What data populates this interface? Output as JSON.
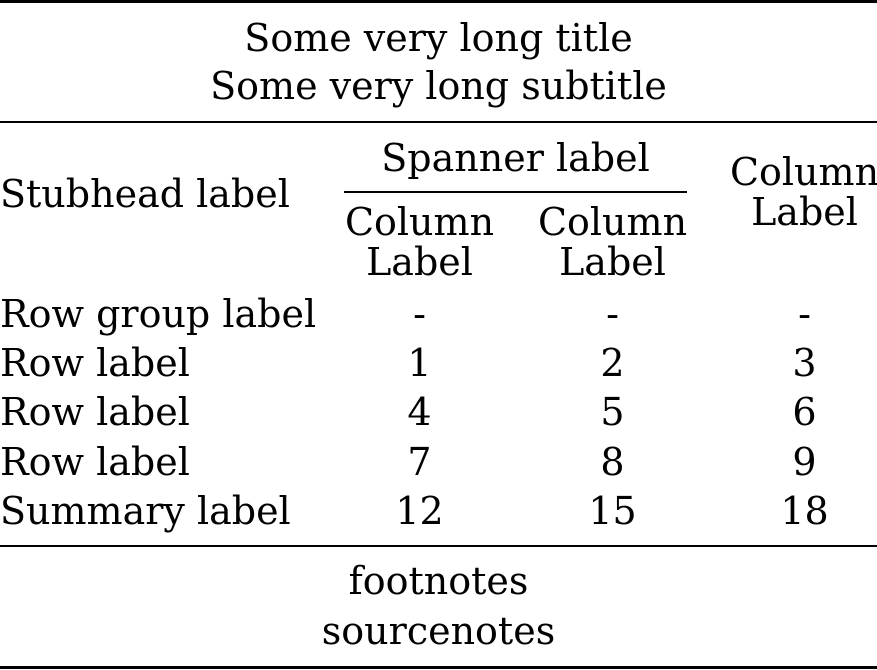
{
  "title": "Some very long title",
  "subtitle": "Some very long subtitle",
  "stubhead": "Stubhead label",
  "spanner": "Spanner label",
  "columns": [
    {
      "line1": "Column",
      "line2": "Label"
    },
    {
      "line1": "Column",
      "line2": "Label"
    },
    {
      "line1": "Column",
      "line2": "Label"
    }
  ],
  "rows": [
    {
      "label": "Row group label",
      "cells": [
        "-",
        "-",
        "-"
      ]
    },
    {
      "label": "Row label",
      "cells": [
        "1",
        "2",
        "3"
      ]
    },
    {
      "label": "Row label",
      "cells": [
        "4",
        "5",
        "6"
      ]
    },
    {
      "label": "Row label",
      "cells": [
        "7",
        "8",
        "9"
      ]
    },
    {
      "label": "Summary label",
      "cells": [
        "12",
        "15",
        "18"
      ]
    }
  ],
  "footnotes": "footnotes",
  "sourcenotes": "sourcenotes"
}
